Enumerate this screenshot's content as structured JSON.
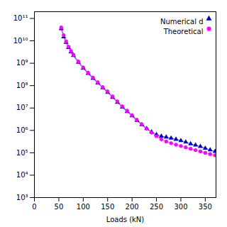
{
  "chart_data": {
    "type": "line",
    "xlabel": "Loads (kN)",
    "x": [
      55,
      60,
      65,
      70,
      75,
      80,
      90,
      100,
      110,
      120,
      130,
      140,
      150,
      160,
      170,
      180,
      190,
      200,
      210,
      220,
      230,
      240,
      250,
      260,
      270,
      280,
      290,
      300,
      310,
      320,
      330,
      340,
      350,
      360,
      370
    ],
    "series": [
      {
        "name": "Numerical d",
        "color": "#0000cc",
        "marker": "triangle",
        "values": [
          35000000000.0,
          15000000000.0,
          8500000000.0,
          5000000000.0,
          3200000000.0,
          2200000000.0,
          1100000000.0,
          600000000.0,
          350000000.0,
          210000000.0,
          130000000.0,
          80000000.0,
          50000000.0,
          30000000.0,
          18000000.0,
          11000000.0,
          7000000.0,
          4500000.0,
          2800000.0,
          1800000.0,
          1200000.0,
          850000.0,
          650000.0,
          550000.0,
          500000.0,
          450000.0,
          400000.0,
          350000.0,
          300000.0,
          250000.0,
          220000.0,
          190000.0,
          160000.0,
          135000.0,
          115000.0
        ]
      },
      {
        "name": "Theoretical",
        "color": "#ff00ff",
        "marker": "circle",
        "values": [
          40000000000.0,
          18000000000.0,
          9500000000.0,
          5500000000.0,
          3500000000.0,
          2400000000.0,
          1200000000.0,
          650000000.0,
          380000000.0,
          230000000.0,
          140000000.0,
          85000000.0,
          55000000.0,
          33000000.0,
          20000000.0,
          12000000.0,
          7500000.0,
          4800000.0,
          3000000.0,
          1900000.0,
          1200000.0,
          800000.0,
          550000.0,
          400000.0,
          320000.0,
          270000.0,
          230000.0,
          200000.0,
          175000.0,
          152000.0,
          132000.0,
          115000.0,
          100000.0,
          88000.0,
          78000.0
        ]
      }
    ],
    "xlim": [
      0,
      372
    ],
    "xticks": [
      0,
      50,
      100,
      150,
      200,
      250,
      300,
      350
    ],
    "ylim": [
      1000.0,
      200000000000.0
    ],
    "yticks": [
      {
        "value": 1000.0,
        "label": "10³"
      },
      {
        "value": 10000.0,
        "label": "10⁴"
      },
      {
        "value": 100000.0,
        "label": "10⁵"
      },
      {
        "value": 1000000.0,
        "label": "10⁶"
      },
      {
        "value": 10000000.0,
        "label": "10⁷"
      },
      {
        "value": 100000000.0,
        "label": "10⁸"
      },
      {
        "value": 1000000000.0,
        "label": "10⁹"
      },
      {
        "value": 10000000000.0,
        "label": "10¹⁰"
      },
      {
        "value": 100000000000.0,
        "label": "10¹¹"
      }
    ],
    "log": "y",
    "grid": false,
    "legend": "upper right"
  }
}
